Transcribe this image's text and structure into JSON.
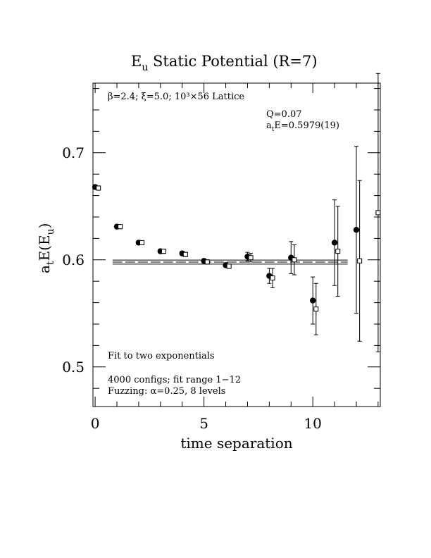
{
  "chart_data": {
    "type": "scatter",
    "title": "E",
    "title_sub": "u",
    "title_rest": " Static Potential (R=7)",
    "xlabel": "time separation",
    "ylabel": "a",
    "ylabel_sub1": "t",
    "ylabel_mid": "E(E",
    "ylabel_sub2": "u",
    "ylabel_end": ")",
    "xlim": [
      -0.1,
      13.1
    ],
    "ylim": [
      0.463,
      0.765
    ],
    "xticks": [
      0,
      5,
      10
    ],
    "xtick_labels": [
      "0",
      "5",
      "10"
    ],
    "yticks": [
      0.5,
      0.6,
      0.7
    ],
    "ytick_labels": [
      "0.5",
      "0.6",
      "0.7"
    ],
    "grid": false,
    "annotations": {
      "lattice": "β=2.4; ξ=5.0; 10³×56 Lattice",
      "q": "Q=0.07",
      "fit_energy": "a",
      "fit_energy_sub": "t",
      "fit_energy_rest": "E=0.5979(19)",
      "fit_type": "Fit to two exponentials",
      "configs": "4000 configs; fit range 1−12",
      "fuzzing": "Fuzzing: α=0.25, 8 levels"
    },
    "fit": {
      "value": 0.5979,
      "error": 0.0019,
      "x_range": [
        0.8,
        11.6
      ]
    },
    "series": [
      {
        "marker": "filled-circle",
        "points": [
          {
            "x": 0,
            "y": 0.668,
            "err": 0.002
          },
          {
            "x": 1,
            "y": 0.631,
            "err": 0.002
          },
          {
            "x": 2,
            "y": 0.616,
            "err": 0.002
          },
          {
            "x": 3,
            "y": 0.608,
            "err": 0.002
          },
          {
            "x": 4,
            "y": 0.606,
            "err": 0.002
          },
          {
            "x": 5,
            "y": 0.599,
            "err": 0.002
          },
          {
            "x": 6,
            "y": 0.595,
            "err": 0.002
          },
          {
            "x": 7,
            "y": 0.603,
            "err": 0.004
          },
          {
            "x": 8,
            "y": 0.585,
            "err": 0.007
          },
          {
            "x": 9,
            "y": 0.602,
            "err": 0.015
          },
          {
            "x": 10,
            "y": 0.562,
            "err": 0.022
          },
          {
            "x": 11,
            "y": 0.616,
            "err": 0.04
          },
          {
            "x": 12,
            "y": 0.628,
            "err": 0.078
          }
        ]
      },
      {
        "marker": "open-square",
        "points": [
          {
            "x": 0.15,
            "y": 0.667,
            "err": 0.002
          },
          {
            "x": 1.15,
            "y": 0.631,
            "err": 0.002
          },
          {
            "x": 2.15,
            "y": 0.616,
            "err": 0.002
          },
          {
            "x": 3.15,
            "y": 0.608,
            "err": 0.002
          },
          {
            "x": 4.15,
            "y": 0.605,
            "err": 0.002
          },
          {
            "x": 5.15,
            "y": 0.598,
            "err": 0.002
          },
          {
            "x": 6.15,
            "y": 0.594,
            "err": 0.002
          },
          {
            "x": 7.15,
            "y": 0.602,
            "err": 0.004
          },
          {
            "x": 8.15,
            "y": 0.583,
            "err": 0.009
          },
          {
            "x": 9.15,
            "y": 0.6,
            "err": 0.014
          },
          {
            "x": 10.15,
            "y": 0.554,
            "err": 0.024
          },
          {
            "x": 11.15,
            "y": 0.608,
            "err": 0.042
          },
          {
            "x": 12.15,
            "y": 0.599,
            "err": 0.075
          },
          {
            "x": 13.0,
            "y": 0.644,
            "err": 0.13
          }
        ]
      }
    ]
  }
}
